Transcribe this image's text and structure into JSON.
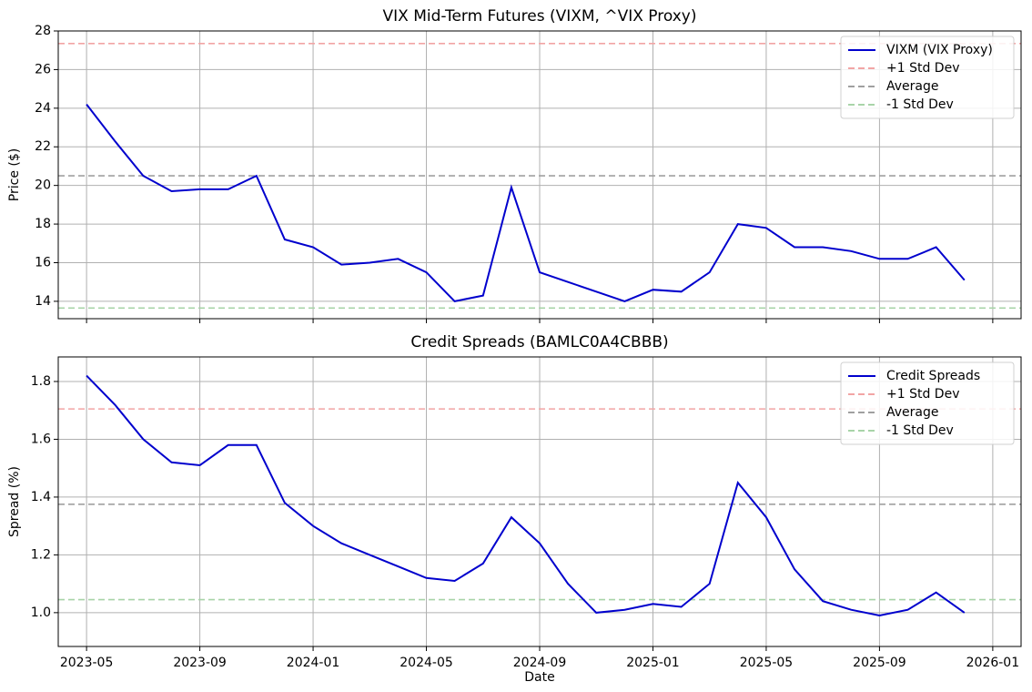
{
  "chart_data": [
    {
      "type": "line",
      "title": "VIX Mid-Term Futures (VIXM, ^VIX Proxy)",
      "ylabel": "Price ($)",
      "x": [
        "2023-05",
        "2023-06",
        "2023-07",
        "2023-08",
        "2023-09",
        "2023-10",
        "2023-11",
        "2023-12",
        "2024-01",
        "2024-02",
        "2024-03",
        "2024-04",
        "2024-05",
        "2024-06",
        "2024-07",
        "2024-08",
        "2024-09",
        "2024-10",
        "2024-11",
        "2024-12",
        "2025-01",
        "2025-02",
        "2025-03",
        "2025-04",
        "2025-05",
        "2025-06",
        "2025-07",
        "2025-08",
        "2025-09",
        "2025-10",
        "2025-11",
        "2025-12"
      ],
      "series": [
        {
          "name": "VIXM (VIX Proxy)",
          "color": "#0000cd",
          "values": [
            24.2,
            22.3,
            20.5,
            19.7,
            19.8,
            19.8,
            20.5,
            17.2,
            16.8,
            15.9,
            16.0,
            16.2,
            15.5,
            14.0,
            14.3,
            19.9,
            15.5,
            15.0,
            14.5,
            14.0,
            14.6,
            14.5,
            15.5,
            18.0,
            17.8,
            16.8,
            16.8,
            16.6,
            16.2,
            16.2,
            16.8,
            15.1
          ]
        }
      ],
      "reference_lines": [
        {
          "name": "+1 Std Dev",
          "value": 27.35,
          "color": "#f2a5a5"
        },
        {
          "name": "Average",
          "value": 20.5,
          "color": "#a0a0a0"
        },
        {
          "name": "-1 Std Dev",
          "value": 13.65,
          "color": "#a8d4a8"
        }
      ],
      "xlim": [
        "2023-04",
        "2026-02"
      ],
      "xticks": [
        "2023-05",
        "2023-09",
        "2024-01",
        "2024-05",
        "2024-09",
        "2025-01",
        "2025-05",
        "2025-09",
        "2026-01"
      ],
      "show_xtick_labels": false,
      "ylim": [
        13.1,
        28.0
      ],
      "yticks": [
        14,
        16,
        18,
        20,
        22,
        24,
        26,
        28
      ],
      "grid": true,
      "legend": "upper right"
    },
    {
      "type": "line",
      "title": "Credit Spreads (BAMLC0A4CBBB)",
      "ylabel": "Spread (%)",
      "xlabel": "Date",
      "x": [
        "2023-05",
        "2023-06",
        "2023-07",
        "2023-08",
        "2023-09",
        "2023-10",
        "2023-11",
        "2023-12",
        "2024-01",
        "2024-02",
        "2024-03",
        "2024-04",
        "2024-05",
        "2024-06",
        "2024-07",
        "2024-08",
        "2024-09",
        "2024-10",
        "2024-11",
        "2024-12",
        "2025-01",
        "2025-02",
        "2025-03",
        "2025-04",
        "2025-05",
        "2025-06",
        "2025-07",
        "2025-08",
        "2025-09",
        "2025-10",
        "2025-11",
        "2025-12"
      ],
      "series": [
        {
          "name": "Credit Spreads",
          "color": "#0000cd",
          "values": [
            1.82,
            1.72,
            1.6,
            1.52,
            1.51,
            1.58,
            1.58,
            1.38,
            1.3,
            1.24,
            1.2,
            1.16,
            1.12,
            1.11,
            1.17,
            1.33,
            1.24,
            1.1,
            1.0,
            1.01,
            1.03,
            1.02,
            1.1,
            1.45,
            1.33,
            1.15,
            1.04,
            1.01,
            0.99,
            1.01,
            1.07,
            1.0
          ]
        }
      ],
      "reference_lines": [
        {
          "name": "+1 Std Dev",
          "value": 1.705,
          "color": "#f2a5a5"
        },
        {
          "name": "Average",
          "value": 1.375,
          "color": "#a0a0a0"
        },
        {
          "name": "-1 Std Dev",
          "value": 1.045,
          "color": "#a8d4a8"
        }
      ],
      "xlim": [
        "2023-04",
        "2026-02"
      ],
      "xticks": [
        "2023-05",
        "2023-09",
        "2024-01",
        "2024-05",
        "2024-09",
        "2025-01",
        "2025-05",
        "2025-09",
        "2026-01"
      ],
      "show_xtick_labels": true,
      "ylim": [
        0.883,
        1.885
      ],
      "yticks": [
        {
          "value": 1.0,
          "label": "1.0"
        },
        1.2,
        1.4,
        1.6,
        1.8
      ],
      "grid": true,
      "legend": "upper right"
    }
  ]
}
